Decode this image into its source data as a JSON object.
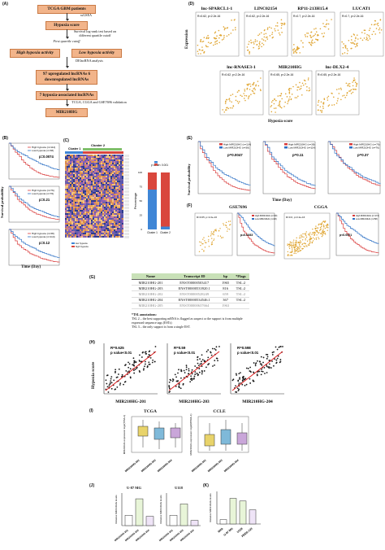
{
  "flow": {
    "panel_label": "(A)",
    "tcga": "TCGA GBM patients",
    "ssgsea": "ssGSEA",
    "hypoxia_score": "Hypoxia score",
    "survival_note": "Survival log-rank test based on different quartile cutoff",
    "first_cutoff": "First quartile cutoff",
    "high": "High hypoxia activity",
    "low": "Low hypoxia activity",
    "deg": "DElncRNA analysis",
    "lnc97": "97 upregulated lncRNAs 6 downregulated lncRNAs",
    "hypoxia7": "7 hypoxia-associated lncRNAs",
    "validation": "TCGA, CGGA and GSE7696 validation",
    "mir": "MIR210HG"
  },
  "panelD": {
    "label": "(D)",
    "ylabel": "Expression",
    "xlabel": "Hypoxia score",
    "plots": [
      {
        "title": "lnc-SPARCL1-1",
        "stat": "R=0.62, p<2.2e-16"
      },
      {
        "title": "LINC02154",
        "stat": "R=0.62, p<2.2e-16"
      },
      {
        "title": "RP11-213H15.4",
        "stat": "R=0.7, p<2.2e-16"
      },
      {
        "title": "LUCAT1",
        "stat": "R=0.7, p<2.2e-16"
      },
      {
        "title": "lnc-RNASE3-1",
        "stat": "R=0.62, p<2.2e-16"
      },
      {
        "title": "MIR210HG",
        "stat": "R=0.65, p<2.2e-16"
      },
      {
        "title": "lnc-DLX2-4",
        "stat": "R=0.65, p<2.2e-16"
      }
    ]
  },
  "panelB": {
    "label": "(B)",
    "ylabel": "Survival probability",
    "xlabel": "Time (Day)",
    "plots": [
      {
        "legend_high": "High hypoxia (n=114)",
        "legend_low": "Low hypoxia (n=38)",
        "p": "p=0.0074"
      },
      {
        "legend_high": "High hypoxia (n=76)",
        "legend_low": "Low hypoxia (n=76)",
        "p": "p=0.21"
      },
      {
        "legend_high": "High hypoxia (n=38)",
        "legend_low": "Low hypoxia (n=114)",
        "p": "p=0.12"
      }
    ]
  },
  "panelC": {
    "label": "(C)",
    "cluster1": "Cluster 1",
    "cluster2": "Cluster 2",
    "ylabel": "Percentage",
    "pvalue": "p value< 0.001",
    "legend_high": "high hypoxia",
    "legend_low": "low hypoxia",
    "xcats": [
      "Cluster 1",
      "Cluster 2"
    ],
    "ticks": [
      "0",
      "25",
      "50",
      "75",
      "100"
    ]
  },
  "panelE": {
    "label": "(E)",
    "ylabel": "Survival probability",
    "xlabel": "Time (Day)",
    "plots": [
      {
        "legend_high": "High MIR210HG (n=114)",
        "legend_low": "Low MIR210HG (n=38)",
        "p": "p=0.0047"
      },
      {
        "legend_high": "High MIR210HG (n=38)",
        "legend_low": "Low MIR210HG (n=114)",
        "p": "p=0.11"
      },
      {
        "legend_high": "High MIR210HG (n=76)",
        "legend_low": "Low MIR210HG (n=76)",
        "p": "p=0.37"
      }
    ]
  },
  "panelF": {
    "label": "(F)",
    "gse": "GSE7696",
    "cgga": "CGGA",
    "gse_stat": "R=0.65, p<2.2e-16",
    "cgga_stat": "R=0.6, p<2.2e-16",
    "gse_p": "p=0.0083",
    "cgga_p": "p<0.0001",
    "gse_leg_high": "High MIR210HG (n=60)",
    "gse_leg_low": "Low MIR210HG (n=20)",
    "cgga_leg_high": "High MIR210HG (n=174)",
    "cgga_leg_low": "Low MIR210HG (n=58)"
  },
  "panelG": {
    "label": "(G)",
    "headers": [
      "Name",
      "Transcript ID",
      "bp",
      "*Flags"
    ],
    "rows": [
      [
        "MIR210HG-201",
        "ENST00000503417",
        "1965",
        "TSL:2"
      ],
      [
        "MIR210HG-203",
        "ENST00000533920.1",
        "816",
        "TSL:2"
      ],
      [
        "MIR210HG-202",
        "ENST00000528249",
        "659",
        "TSL:2"
      ],
      [
        "MIR210HG-204",
        "ENST00000534546.1",
        "367",
        "TSL:2"
      ],
      [
        "MIR210HG-205",
        "ENST00000637664",
        "1963",
        ""
      ]
    ],
    "tsl_title": "*TSL annotations:",
    "tsl2": "TSL 2 – the best supporting mRNA is flagged as suspect or the support is from multiple expressed sequence tags (ESTs)",
    "tsl3": "TSL 3 – the only support is from a single EST."
  },
  "panelH": {
    "label": "(H)",
    "ylabel": "Hypoxia score",
    "plots": [
      {
        "name": "MIR210HG-201",
        "r": "R=0.625",
        "p": "p value<0.01"
      },
      {
        "name": "MIR210HG-203",
        "r": "R=0.59",
        "p": "p value<0.01"
      },
      {
        "name": "MIR210HG-204",
        "r": "R=0.598",
        "p": "p value<0.01"
      }
    ]
  },
  "panelI": {
    "label": "(I)",
    "tcga": "TCGA",
    "ccle": "CCLE",
    "ylabel": "MIR210HG expression log2(TPM+1)",
    "ylabel2": "MIR210HG expression log2(RPKM+1)",
    "cats": [
      "MIR210HG-201",
      "MIR210HG-203",
      "MIR210HG-204"
    ],
    "colors": [
      "#e8d36a",
      "#7fb9d9",
      "#c9a6d9"
    ]
  },
  "panelJ": {
    "label": "(J)",
    "u87": "U-87 MG",
    "u118": "U118",
    "ylabel": "Relative MIR210HG levels",
    "cats": [
      "MIR210HG-201",
      "MIR210HG-203",
      "MIR210HG-204"
    ],
    "u87_values": [
      1.0,
      2.6,
      0.9
    ],
    "u118_values": [
      1.0,
      2.1,
      0.5
    ]
  },
  "panelK": {
    "label": "(K)",
    "ylabel": "Relative MIR210HG levels",
    "cats": [
      "NHA",
      "U-87 MG",
      "U118",
      "PDDS-123"
    ],
    "values": [
      1.0,
      5.8,
      5.2,
      3.2
    ]
  }
}
